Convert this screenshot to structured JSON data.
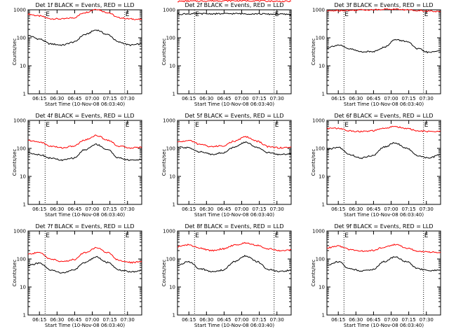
{
  "figure": {
    "panel_title_suffix": " BLACK = Events, RED = LLD"
  },
  "chart_data": [
    {
      "type": "line",
      "title": "Det 1f",
      "xlabel": "Start Time (10-Nov-08 06:03:40)",
      "ylabel": "Counts/sec",
      "x_ticks": [
        "06:15",
        "06:30",
        "06:45",
        "07:00",
        "07:15",
        "07:30"
      ],
      "y_ticks": [
        "1",
        "10",
        "100",
        "1000"
      ],
      "ylim": [
        1,
        1000
      ],
      "scale": "log",
      "markers": [
        "E",
        "E"
      ],
      "series": [
        {
          "color": "#ff0000",
          "x": [
            0,
            10,
            20,
            30,
            40,
            50,
            60,
            70,
            80,
            90,
            100
          ],
          "y": [
            700,
            600,
            480,
            470,
            520,
            800,
            1050,
            800,
            520,
            470,
            450
          ]
        },
        {
          "color": "#000000",
          "x": [
            0,
            10,
            20,
            30,
            40,
            50,
            60,
            70,
            80,
            90,
            100
          ],
          "y": [
            120,
            90,
            60,
            55,
            70,
            130,
            190,
            130,
            70,
            55,
            60
          ]
        }
      ]
    },
    {
      "type": "line",
      "title": "Det 2f",
      "xlabel": "Start Time (10-Nov-08 06:03:40)",
      "ylabel": "Counts/sec",
      "x_ticks": [
        "06:15",
        "06:30",
        "06:45",
        "07:00",
        "07:15",
        "07:30"
      ],
      "y_ticks": [
        "1",
        "10",
        "100",
        "1000"
      ],
      "ylim": [
        1,
        1000
      ],
      "scale": "log",
      "markers": [
        "E",
        "E"
      ],
      "series": [
        {
          "color": "#ff0000",
          "x": [
            0,
            10,
            20,
            30,
            40,
            50,
            60,
            70,
            80,
            90,
            100
          ],
          "y": [
            2000,
            2050,
            2050,
            2100,
            2100,
            2100,
            2100,
            2100,
            2050,
            2000,
            2000
          ]
        },
        {
          "color": "#000000",
          "x": [
            0,
            10,
            20,
            30,
            40,
            50,
            60,
            70,
            80,
            90,
            100
          ],
          "y": [
            700,
            720,
            720,
            720,
            720,
            730,
            720,
            720,
            700,
            700,
            680
          ]
        }
      ]
    },
    {
      "type": "line",
      "title": "Det 3f",
      "xlabel": "Start Time (10-Nov-08 06:03:40)",
      "ylabel": "Counts/sec",
      "x_ticks": [
        "06:15",
        "06:30",
        "06:45",
        "07:00",
        "07:15",
        "07:30"
      ],
      "y_ticks": [
        "1",
        "10",
        "100",
        "1000"
      ],
      "ylim": [
        1,
        1000
      ],
      "scale": "log",
      "markers": [
        "E",
        "E"
      ],
      "series": [
        {
          "color": "#ff0000",
          "x": [
            0,
            10,
            20,
            30,
            40,
            50,
            60,
            70,
            80,
            90,
            100
          ],
          "y": [
            900,
            950,
            950,
            1000,
            1000,
            1050,
            1050,
            1000,
            950,
            900,
            850
          ]
        },
        {
          "color": "#000000",
          "x": [
            0,
            10,
            20,
            30,
            40,
            50,
            60,
            70,
            80,
            90,
            100
          ],
          "y": [
            45,
            55,
            40,
            32,
            32,
            45,
            85,
            75,
            40,
            30,
            35
          ]
        }
      ]
    },
    {
      "type": "line",
      "title": "Det 4f",
      "xlabel": "Start Time (10-Nov-08 06:03:40)",
      "ylabel": "Counts/sec",
      "x_ticks": [
        "06:15",
        "06:30",
        "06:45",
        "07:00",
        "07:15",
        "07:30"
      ],
      "y_ticks": [
        "1",
        "10",
        "100",
        "1000"
      ],
      "ylim": [
        1,
        1000
      ],
      "scale": "log",
      "markers": [
        "E",
        "E"
      ],
      "series": [
        {
          "color": "#ff0000",
          "x": [
            0,
            10,
            20,
            30,
            40,
            50,
            60,
            70,
            80,
            90,
            100
          ],
          "y": [
            190,
            170,
            120,
            105,
            120,
            200,
            290,
            200,
            120,
            105,
            110
          ]
        },
        {
          "color": "#000000",
          "x": [
            0,
            10,
            20,
            30,
            40,
            50,
            60,
            70,
            80,
            90,
            100
          ],
          "y": [
            70,
            60,
            45,
            38,
            45,
            90,
            140,
            90,
            45,
            38,
            40
          ]
        }
      ]
    },
    {
      "type": "line",
      "title": "Det 5f",
      "xlabel": "Start Time (10-Nov-08 06:03:40)",
      "ylabel": "Counts/sec",
      "x_ticks": [
        "06:15",
        "06:30",
        "06:45",
        "07:00",
        "07:15",
        "07:30"
      ],
      "y_ticks": [
        "1",
        "10",
        "100",
        "1000"
      ],
      "ylim": [
        1,
        1000
      ],
      "scale": "log",
      "markers": [
        "E",
        "E"
      ],
      "series": [
        {
          "color": "#ff0000",
          "x": [
            0,
            10,
            20,
            30,
            40,
            50,
            60,
            70,
            80,
            90,
            100
          ],
          "y": [
            170,
            190,
            140,
            115,
            125,
            180,
            260,
            180,
            115,
            105,
            110
          ]
        },
        {
          "color": "#000000",
          "x": [
            0,
            10,
            20,
            30,
            40,
            50,
            60,
            70,
            80,
            90,
            100
          ],
          "y": [
            110,
            105,
            75,
            62,
            70,
            110,
            165,
            110,
            70,
            60,
            65
          ]
        }
      ]
    },
    {
      "type": "line",
      "title": "Det 6f",
      "xlabel": "Start Time (10-Nov-08 06:03:40)",
      "ylabel": "Counts/sec",
      "x_ticks": [
        "06:15",
        "06:30",
        "06:45",
        "07:00",
        "07:15",
        "07:30"
      ],
      "y_ticks": [
        "1",
        "10",
        "100",
        "1000"
      ],
      "ylim": [
        1,
        1000
      ],
      "scale": "log",
      "markers": [
        "E",
        "E"
      ],
      "series": [
        {
          "color": "#ff0000",
          "x": [
            0,
            10,
            20,
            30,
            40,
            50,
            60,
            70,
            80,
            90,
            100
          ],
          "y": [
            520,
            520,
            420,
            400,
            420,
            520,
            600,
            520,
            420,
            400,
            400
          ]
        },
        {
          "color": "#000000",
          "x": [
            0,
            10,
            20,
            30,
            40,
            50,
            60,
            70,
            80,
            90,
            100
          ],
          "y": [
            90,
            110,
            60,
            45,
            55,
            110,
            160,
            100,
            55,
            45,
            60
          ]
        }
      ]
    },
    {
      "type": "line",
      "title": "Det 7f",
      "xlabel": "Start Time (10-Nov-08 06:03:40)",
      "ylabel": "Counts/sec",
      "x_ticks": [
        "06:15",
        "06:30",
        "06:45",
        "07:00",
        "07:15",
        "07:30"
      ],
      "y_ticks": [
        "1",
        "10",
        "100",
        "1000"
      ],
      "ylim": [
        1,
        1000
      ],
      "scale": "log",
      "markers": [
        "E",
        "E"
      ],
      "series": [
        {
          "color": "#ff0000",
          "x": [
            0,
            10,
            20,
            30,
            40,
            50,
            60,
            70,
            80,
            90,
            100
          ],
          "y": [
            150,
            170,
            100,
            80,
            95,
            170,
            250,
            170,
            90,
            75,
            80
          ]
        },
        {
          "color": "#000000",
          "x": [
            0,
            10,
            20,
            30,
            40,
            50,
            60,
            70,
            80,
            90,
            100
          ],
          "y": [
            60,
            70,
            40,
            32,
            40,
            75,
            120,
            75,
            40,
            35,
            38
          ]
        }
      ]
    },
    {
      "type": "line",
      "title": "Det 8f",
      "xlabel": "Start Time (10-Nov-08 06:03:40)",
      "ylabel": "Counts/sec",
      "x_ticks": [
        "06:15",
        "06:30",
        "06:45",
        "07:00",
        "07:15",
        "07:30"
      ],
      "y_ticks": [
        "1",
        "10",
        "100",
        "1000"
      ],
      "ylim": [
        1,
        1000
      ],
      "scale": "log",
      "markers": [
        "E",
        "E"
      ],
      "series": [
        {
          "color": "#ff0000",
          "x": [
            0,
            10,
            20,
            30,
            40,
            50,
            60,
            70,
            80,
            90,
            100
          ],
          "y": [
            280,
            320,
            240,
            200,
            230,
            310,
            380,
            310,
            230,
            200,
            210
          ]
        },
        {
          "color": "#000000",
          "x": [
            0,
            10,
            20,
            30,
            40,
            50,
            60,
            70,
            80,
            90,
            100
          ],
          "y": [
            60,
            80,
            45,
            35,
            40,
            80,
            130,
            80,
            42,
            35,
            40
          ]
        }
      ]
    },
    {
      "type": "line",
      "title": "Det 9f",
      "xlabel": "Start Time (10-Nov-08 06:03:40)",
      "ylabel": "Counts/sec",
      "x_ticks": [
        "06:15",
        "06:30",
        "06:45",
        "07:00",
        "07:15",
        "07:30"
      ],
      "y_ticks": [
        "1",
        "10",
        "100",
        "1000"
      ],
      "ylim": [
        1,
        1000
      ],
      "scale": "log",
      "markers": [
        "E",
        "E"
      ],
      "series": [
        {
          "color": "#ff0000",
          "x": [
            0,
            10,
            20,
            30,
            40,
            50,
            60,
            70,
            80,
            90,
            100
          ],
          "y": [
            250,
            290,
            220,
            190,
            200,
            260,
            330,
            250,
            190,
            175,
            175
          ]
        },
        {
          "color": "#000000",
          "x": [
            0,
            10,
            20,
            30,
            40,
            50,
            60,
            70,
            80,
            90,
            100
          ],
          "y": [
            60,
            80,
            45,
            38,
            42,
            80,
            120,
            80,
            45,
            38,
            40
          ]
        }
      ]
    }
  ]
}
